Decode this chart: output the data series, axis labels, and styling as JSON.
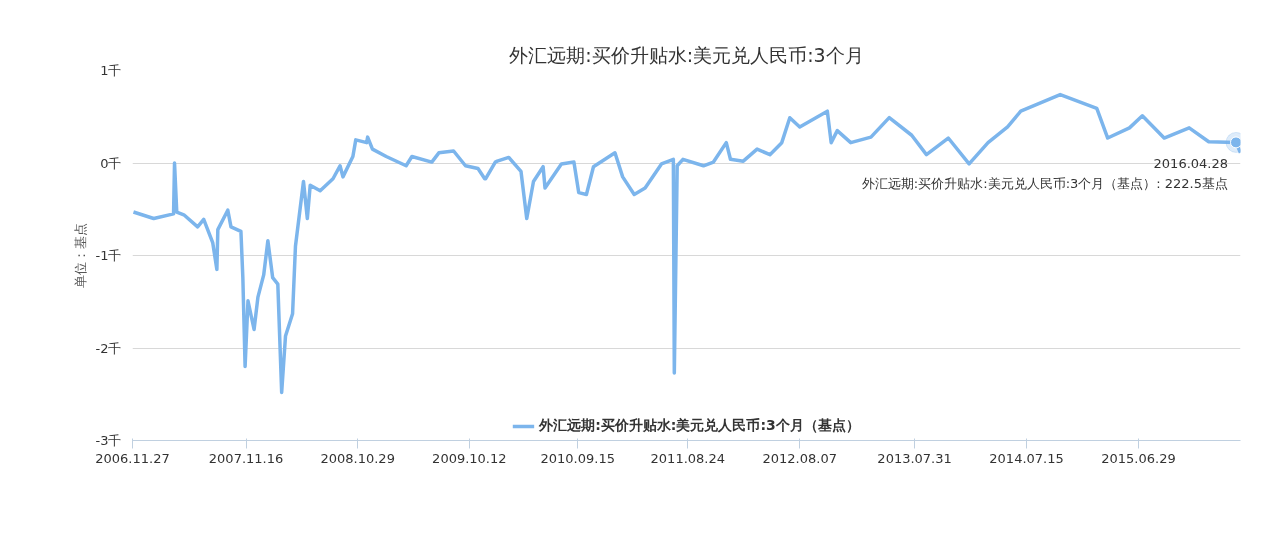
{
  "chart_data": {
    "type": "line",
    "title": "外汇远期:买价升贴水:美元兑人民币:3个月",
    "ylabel": "单位：基点",
    "legend": "bottom",
    "grid": "y",
    "marker": "none",
    "line_style": "solid",
    "xlim": [
      "2006-11-27",
      "2016-05-12"
    ],
    "xticks": [
      {
        "value": "2006-11-27",
        "label": "2006.11.27"
      },
      {
        "value": "2007-11-16",
        "label": "2007.11.16"
      },
      {
        "value": "2008-10-29",
        "label": "2008.10.29"
      },
      {
        "value": "2009-10-12",
        "label": "2009.10.12"
      },
      {
        "value": "2010-09-15",
        "label": "2010.09.15"
      },
      {
        "value": "2011-08-24",
        "label": "2011.08.24"
      },
      {
        "value": "2012-08-07",
        "label": "2012.08.07"
      },
      {
        "value": "2013-07-31",
        "label": "2013.07.31"
      },
      {
        "value": "2014-07-15",
        "label": "2014.07.15"
      },
      {
        "value": "2015-06-29",
        "label": "2015.06.29"
      }
    ],
    "ylim": [
      -3,
      1
    ],
    "yticks": [
      {
        "value": -3,
        "label": "-3千"
      },
      {
        "value": -2,
        "label": "-2千"
      },
      {
        "value": -1,
        "label": "-1千"
      },
      {
        "value": 0,
        "label": "0千"
      },
      {
        "value": 1,
        "label": "1千"
      }
    ],
    "annotations": [
      {
        "text": "2016.04.28\n外汇远期:买价升贴水:美元兑人民币:3个月（基点）: 222.5基点",
        "x": "2016-04-28",
        "y": 0.2225
      }
    ],
    "series": [
      {
        "name": "外汇远期:买价升贴水:美元兑人民币:3个月（基点）",
        "color": "#7cb5ec",
        "x": [
          "2006-11-30",
          "2007-02-01",
          "2007-04-04",
          "2007-04-07",
          "2007-04-14",
          "2007-05-06",
          "2007-06-18",
          "2007-07-07",
          "2007-08-04",
          "2007-08-17",
          "2007-08-20",
          "2007-09-20",
          "2007-09-30",
          "2007-10-31",
          "2007-11-06",
          "2007-11-13",
          "2007-11-22",
          "2007-12-11",
          "2007-12-23",
          "2008-01-10",
          "2008-01-23",
          "2008-02-07",
          "2008-02-23",
          "2008-03-06",
          "2008-03-18",
          "2008-04-09",
          "2008-04-18",
          "2008-05-13",
          "2008-05-25",
          "2008-06-03",
          "2008-07-04",
          "2008-08-13",
          "2008-09-04",
          "2008-09-13",
          "2008-10-14",
          "2008-10-23",
          "2008-11-26",
          "2008-11-29",
          "2008-12-14",
          "2009-01-26",
          "2009-03-29",
          "2009-04-16",
          "2009-06-17",
          "2009-07-09",
          "2009-08-24",
          "2009-09-30",
          "2009-11-08",
          "2009-11-29",
          "2009-12-02",
          "2010-01-01",
          "2010-01-07",
          "2010-02-12",
          "2010-03-22",
          "2010-04-09",
          "2010-04-30",
          "2010-05-30",
          "2010-06-05",
          "2010-07-26",
          "2010-09-03",
          "2010-09-18",
          "2010-10-12",
          "2010-11-03",
          "2011-01-09",
          "2011-02-02",
          "2011-03-10",
          "2011-04-13",
          "2011-06-03",
          "2011-07-10",
          "2011-07-13",
          "2011-07-22",
          "2011-08-09",
          "2011-10-12",
          "2011-11-12",
          "2011-12-22",
          "2012-01-04",
          "2012-02-13",
          "2012-03-27",
          "2012-05-06",
          "2012-06-12",
          "2012-07-07",
          "2012-08-07",
          "2012-11-01",
          "2012-11-13",
          "2012-12-02",
          "2013-01-13",
          "2013-03-17",
          "2013-05-13",
          "2013-07-22",
          "2013-09-06",
          "2013-11-13",
          "2014-01-17",
          "2014-03-17",
          "2014-05-17",
          "2014-06-27",
          "2014-10-28",
          "2015-02-19",
          "2015-03-25",
          "2015-06-01",
          "2015-07-11",
          "2015-09-17",
          "2015-12-04",
          "2016-02-03",
          "2016-04-28",
          "2016-05-12"
        ],
        "values": [
          -0.53,
          -0.6,
          -0.55,
          0,
          -0.53,
          -0.56,
          -0.69,
          -0.61,
          -0.86,
          -1.15,
          -0.72,
          -0.51,
          -0.69,
          -0.74,
          -1.24,
          -2.2,
          -1.49,
          -1.8,
          -1.45,
          -1.21,
          -0.84,
          -1.24,
          -1.31,
          -2.48,
          -1.87,
          -1.63,
          -0.9,
          -0.2,
          -0.6,
          -0.24,
          -0.3,
          -0.17,
          -0.03,
          -0.15,
          0.07,
          0.25,
          0.22,
          0.28,
          0.15,
          0.07,
          -0.03,
          0.07,
          0.01,
          0.11,
          0.13,
          -0.03,
          -0.06,
          -0.17,
          -0.17,
          0.01,
          0.02,
          0.06,
          -0.09,
          -0.6,
          -0.2,
          -0.04,
          -0.27,
          -0.01,
          0.01,
          -0.32,
          -0.34,
          -0.04,
          0.11,
          -0.15,
          -0.34,
          -0.27,
          -0.01,
          0.04,
          -2.27,
          -0.03,
          0.04,
          -0.03,
          0.01,
          0.22,
          0.04,
          0.02,
          0.15,
          0.09,
          0.22,
          0.49,
          0.39,
          0.56,
          0.22,
          0.35,
          0.22,
          0.28,
          0.49,
          0.3,
          0.09,
          0.27,
          -0.01,
          0.22,
          0.39,
          0.56,
          0.74,
          0.59,
          0.27,
          0.38,
          0.51,
          0.27,
          0.38,
          0.23,
          0.2225,
          0.11
        ]
      }
    ]
  }
}
